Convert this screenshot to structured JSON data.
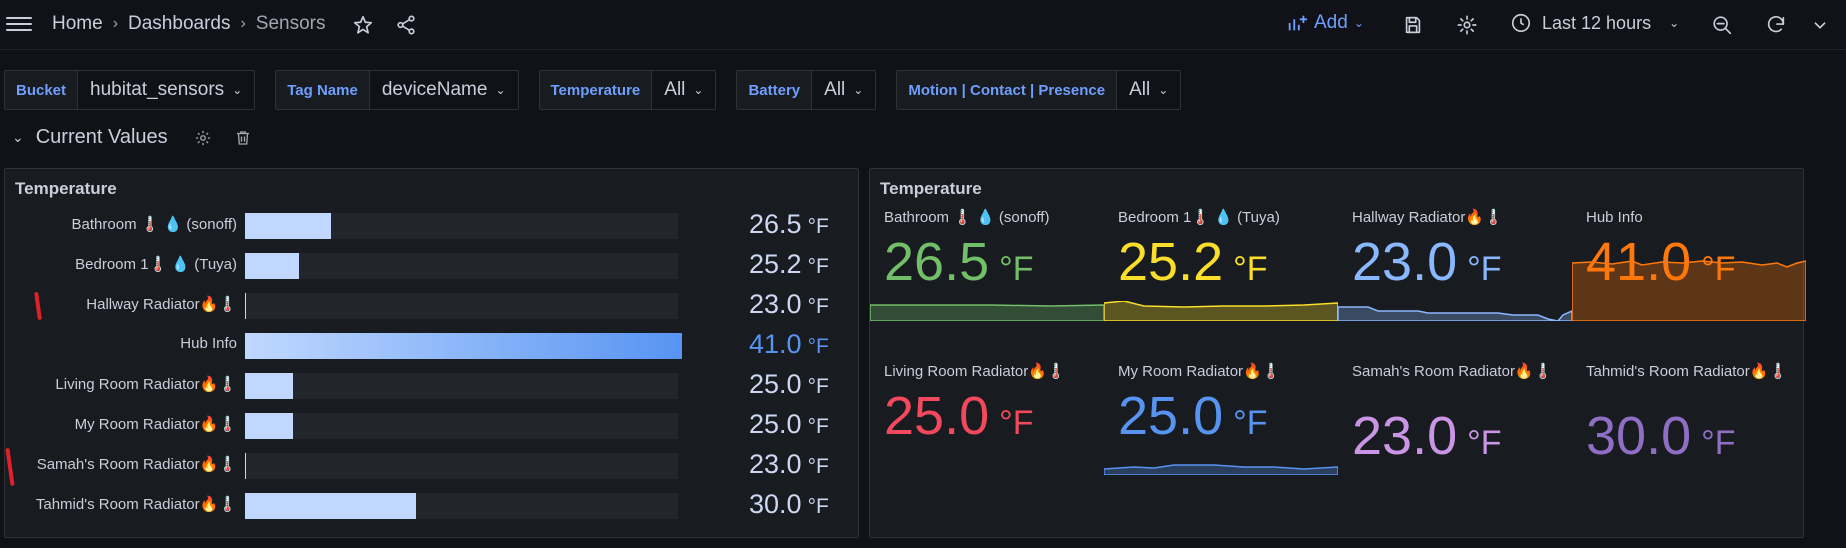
{
  "topbar": {
    "breadcrumbs": [
      "Home",
      "Dashboards",
      "Sensors"
    ],
    "add_label": "Add",
    "time_range": "Last 12 hours"
  },
  "variables": [
    {
      "label": "Bucket",
      "value": "hubitat_sensors"
    },
    {
      "label": "Tag Name",
      "value": "deviceName"
    },
    {
      "label": "Temperature",
      "value": "All"
    },
    {
      "label": "Battery",
      "value": "All"
    },
    {
      "label": "Motion | Contact | Presence",
      "value": "All"
    }
  ],
  "row": {
    "title": "Current Values"
  },
  "left_panel": {
    "title": "Temperature",
    "unit": "°F",
    "items": [
      {
        "label": "Bathroom 🌡️ 💧 (sonoff)",
        "value": "26.5",
        "fill": 0.198
      },
      {
        "label": "Bedroom 1🌡️ 💧 (Tuya)",
        "value": "25.2",
        "fill": 0.124
      },
      {
        "label": "Hallway Radiator🔥🌡️",
        "value": "23.0",
        "fill": 0.0
      },
      {
        "label": "Hub Info",
        "value": "41.0",
        "fill": 1.0
      },
      {
        "label": "Living Room Radiator🔥🌡️",
        "value": "25.0",
        "fill": 0.112
      },
      {
        "label": "My Room Radiator🔥🌡️",
        "value": "25.0",
        "fill": 0.112
      },
      {
        "label": "Samah's Room Radiator🔥🌡️",
        "value": "23.0",
        "fill": 0.0
      },
      {
        "label": "Tahmid's Room Radiator🔥🌡️",
        "value": "30.0",
        "fill": 0.395
      }
    ]
  },
  "right_panel": {
    "title": "Temperature",
    "unit": "°F",
    "stats": [
      {
        "label": "Bathroom 🌡️ 💧 (sonoff)",
        "value": "26.5",
        "color": "#73bf69"
      },
      {
        "label": "Bedroom 1🌡️ 💧 (Tuya)",
        "value": "25.2",
        "color": "#fade2a"
      },
      {
        "label": "Hallway Radiator🔥🌡️",
        "value": "23.0",
        "color": "#8ab8ff"
      },
      {
        "label": "Hub Info",
        "value": "41.0",
        "color": "#ff780a"
      },
      {
        "label": "Living Room Radiator🔥🌡️",
        "value": "25.0",
        "color": "#f2495c"
      },
      {
        "label": "My Room Radiator🔥🌡️",
        "value": "25.0",
        "color": "#5794f2"
      },
      {
        "label": "Samah's Room Radiator🔥🌡️",
        "value": "23.0",
        "color": "#ca95e5"
      },
      {
        "label": "Tahmid's Room Radiator🔥🌡️",
        "value": "30.0",
        "color": "#8f6fc6"
      }
    ]
  }
}
